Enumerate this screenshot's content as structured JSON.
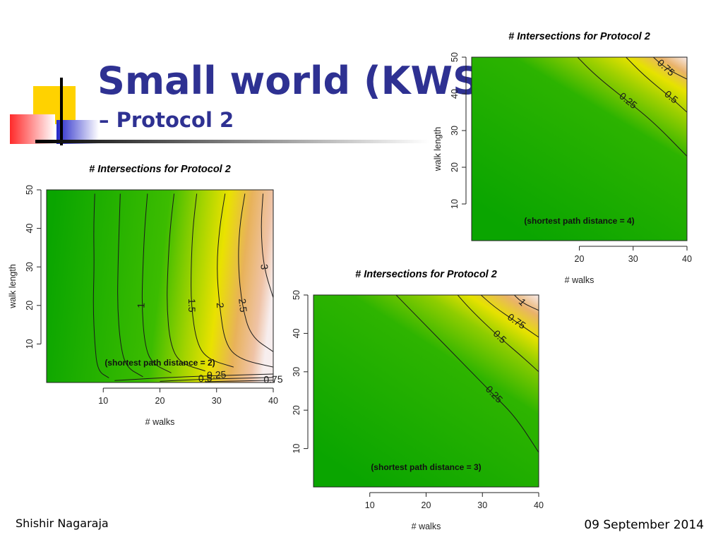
{
  "slide": {
    "title": "Small world (KWS)",
    "subtitle": "– Protocol 2",
    "author": "Shishir Nagaraja",
    "date": "09 September 2014",
    "colors": {
      "title": "#2e3192",
      "accent_yellow": "#ffd200",
      "accent_red": "#ff3b3b",
      "accent_blue": "#2b2fc8"
    }
  },
  "chart_data": [
    {
      "type": "heatmap",
      "title": "# Intersections for Protocol 2",
      "xlabel": "# walks",
      "ylabel": "walk length",
      "xlim": [
        0,
        40
      ],
      "ylim": [
        0,
        50
      ],
      "xticks": [
        10,
        20,
        30,
        40
      ],
      "yticks": [
        10,
        20,
        30,
        40,
        50
      ],
      "annotation": "(shortest path distance = 2)",
      "contours": [
        {
          "level": "0.25",
          "points": [
            [
              12,
              0.5
            ],
            [
              20,
              1.2
            ],
            [
              30,
              1.8
            ],
            [
              40,
              2.2
            ]
          ]
        },
        {
          "level": "0.5",
          "points": [
            [
              20,
              0.3
            ],
            [
              28,
              0.9
            ],
            [
              40,
              1.3
            ]
          ]
        },
        {
          "level": "0.75",
          "points": [
            [
              28,
              0.2
            ],
            [
              40,
              0.6
            ]
          ]
        },
        {
          "level": "",
          "points": [
            [
              8.5,
              49
            ],
            [
              8.3,
              40
            ],
            [
              8.4,
              30
            ],
            [
              8.2,
              20
            ],
            [
              8.5,
              10
            ],
            [
              9,
              3
            ],
            [
              11,
              1.2
            ]
          ]
        },
        {
          "level": "",
          "points": [
            [
              13,
              49
            ],
            [
              12.8,
              40
            ],
            [
              12.6,
              30
            ],
            [
              12.5,
              20
            ],
            [
              13,
              10
            ],
            [
              14,
              4
            ],
            [
              17,
              1.5
            ]
          ]
        },
        {
          "level": "1",
          "points": [
            [
              17.8,
              49
            ],
            [
              17.3,
              40
            ],
            [
              17,
              30
            ],
            [
              16.8,
              20
            ],
            [
              17.3,
              10
            ],
            [
              18.5,
              5
            ],
            [
              22,
              2.5
            ]
          ]
        },
        {
          "level": "",
          "points": [
            [
              22.5,
              49
            ],
            [
              21.8,
              40
            ],
            [
              21.4,
              30
            ],
            [
              21.2,
              20
            ],
            [
              21.8,
              10
            ],
            [
              23.5,
              5
            ],
            [
              28,
              3
            ]
          ]
        },
        {
          "level": "1.5",
          "points": [
            [
              26.5,
              49
            ],
            [
              25.8,
              40
            ],
            [
              25.5,
              30
            ],
            [
              25.5,
              20
            ],
            [
              26.5,
              10
            ],
            [
              28.5,
              6
            ],
            [
              33,
              4
            ]
          ]
        },
        {
          "level": "2",
          "points": [
            [
              31.5,
              49
            ],
            [
              30.5,
              40
            ],
            [
              30,
              30
            ],
            [
              30.5,
              20
            ],
            [
              31.5,
              10
            ],
            [
              34,
              6
            ],
            [
              40,
              4
            ]
          ]
        },
        {
          "level": "2.5",
          "points": [
            [
              35,
              49
            ],
            [
              34,
              40
            ],
            [
              33.8,
              30
            ],
            [
              34.5,
              20
            ],
            [
              36,
              12
            ],
            [
              40,
              8
            ]
          ]
        },
        {
          "level": "3",
          "points": [
            [
              38.2,
              49
            ],
            [
              37.8,
              40
            ],
            [
              38.3,
              30
            ],
            [
              40,
              22
            ]
          ]
        }
      ]
    },
    {
      "type": "heatmap",
      "title": "# Intersections for Protocol 2",
      "xlabel": "# walks",
      "ylabel": "",
      "xlim": [
        0,
        40
      ],
      "ylim": [
        0,
        50
      ],
      "xticks": [
        10,
        20,
        30,
        40
      ],
      "yticks": [
        10,
        20,
        30,
        40,
        50
      ],
      "annotation": "(shortest path distance = 3)",
      "contours": [
        {
          "level": "0.25",
          "points": [
            [
              14,
              51
            ],
            [
              20,
              42
            ],
            [
              26,
              33
            ],
            [
              32,
              24
            ],
            [
              36,
              18
            ],
            [
              40,
              9
            ]
          ]
        },
        {
          "level": "0.5",
          "points": [
            [
              25,
              51
            ],
            [
              28,
              46
            ],
            [
              33,
              39
            ],
            [
              37,
              34
            ],
            [
              40,
              30
            ]
          ]
        },
        {
          "level": "0.75",
          "points": [
            [
              29,
              51
            ],
            [
              32,
              47
            ],
            [
              36,
              43
            ],
            [
              40,
              39
            ]
          ]
        },
        {
          "level": "1",
          "points": [
            [
              35,
              51
            ],
            [
              37,
              48
            ],
            [
              40,
              46
            ]
          ]
        }
      ]
    },
    {
      "type": "heatmap",
      "title": "# Intersections for Protocol 2",
      "xlabel": "# walks",
      "ylabel": "walk length",
      "xlim": [
        0,
        40
      ],
      "ylim": [
        0,
        50
      ],
      "xticks": [
        20,
        30,
        40
      ],
      "yticks": [
        10,
        20,
        30,
        40,
        50
      ],
      "annotation": "(shortest path distance = 4)",
      "contours": [
        {
          "level": "0.25",
          "points": [
            [
              19,
              51
            ],
            [
              23,
              45
            ],
            [
              29,
              38
            ],
            [
              34,
              32
            ],
            [
              40,
              23
            ]
          ]
        },
        {
          "level": "0.5",
          "points": [
            [
              28,
              51
            ],
            [
              32,
              45
            ],
            [
              37,
              39
            ],
            [
              40,
              35
            ]
          ]
        },
        {
          "level": "0.75",
          "points": [
            [
              33,
              51
            ],
            [
              36,
              47
            ],
            [
              40,
              44
            ]
          ]
        }
      ]
    }
  ]
}
